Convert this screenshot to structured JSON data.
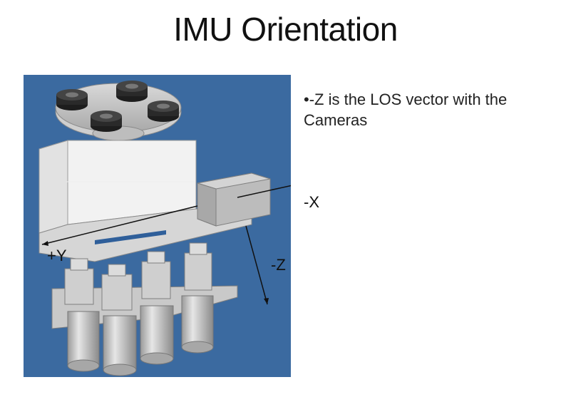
{
  "slide": {
    "title": "IMU Orientation",
    "bullet": "•-Z is the LOS vector with the Cameras"
  },
  "axes": {
    "x_label": "-X",
    "y_label": "+Y",
    "z_label": "-Z"
  },
  "colors": {
    "figure_background": "#3b6aa0",
    "arrow": "#111111",
    "housing": "#f4f4f4",
    "metal": "#c8c8c8",
    "puck": "#2a2a2a"
  }
}
